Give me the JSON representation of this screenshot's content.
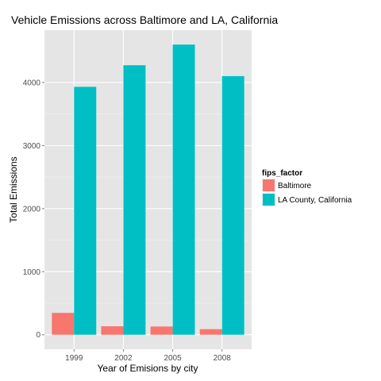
{
  "chart_data": {
    "type": "bar",
    "title": "Vehicle Emissions across Baltimore and LA, California",
    "xlabel": "Year of Emisions by city",
    "ylabel": "Total Emissions",
    "categories": [
      "1999",
      "2002",
      "2005",
      "2008"
    ],
    "series": [
      {
        "name": "Baltimore",
        "values": [
          346.8,
          134.3,
          130.4,
          88.3
        ],
        "color": "#F8766D"
      },
      {
        "name": "LA County, California",
        "values": [
          3931.1,
          4274.0,
          4601.4,
          4101.3
        ],
        "color": "#00BFC4"
      }
    ],
    "yticks": [
      0,
      1000,
      2000,
      3000,
      4000
    ],
    "ylim": [
      -230,
      4830
    ],
    "grid": true,
    "legend_title": "fips_factor",
    "legend_position": "right"
  }
}
